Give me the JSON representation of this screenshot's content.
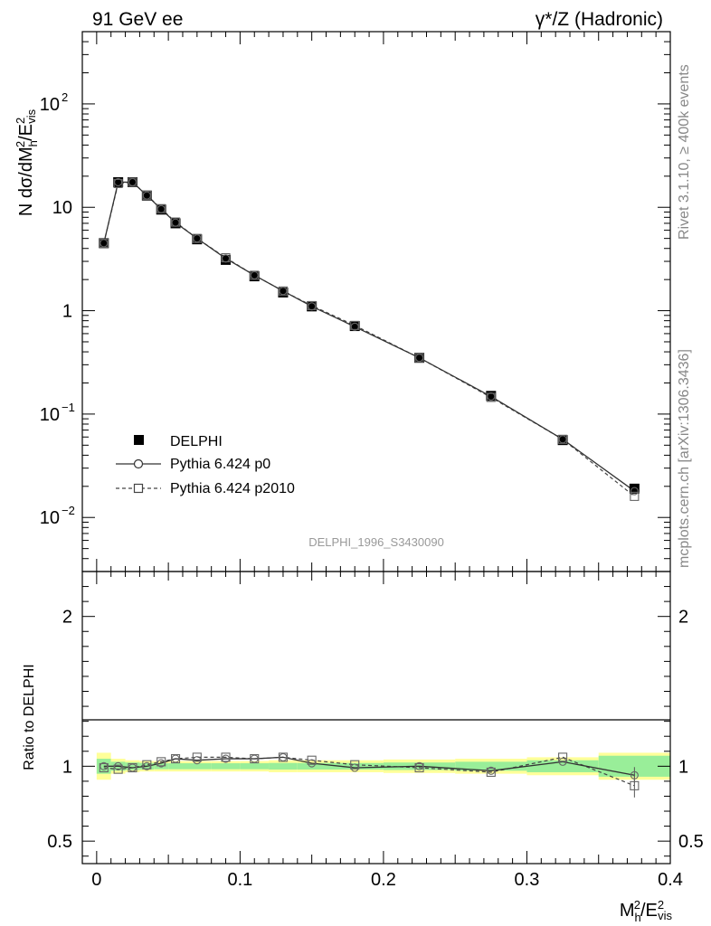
{
  "header": {
    "left_title": "91 GeV ee",
    "right_title": "γ*/Z (Hadronic)"
  },
  "side_labels": {
    "rivet": "Rivet 3.1.10, ≥ 400k events",
    "mcplots": "mcplots.cern.ch [arXiv:1306.3436]"
  },
  "analysis_id": "DELPHI_1996_S3430090",
  "chart_data": [
    {
      "type": "scatter",
      "panel": "main",
      "ylabel": "N dσ/dM_h^2/E_vis^2",
      "yscale": "log",
      "ylim": [
        0.003,
        500
      ],
      "xlim": [
        -0.01,
        0.4
      ],
      "y_tick_labels": [
        {
          "value": 100,
          "base": "10",
          "exp": "2"
        },
        {
          "value": 10,
          "base": "10",
          "exp": ""
        },
        {
          "value": 1,
          "base": "1",
          "exp": ""
        },
        {
          "value": 0.1,
          "base": "10",
          "exp": "−1"
        },
        {
          "value": 0.01,
          "base": "10",
          "exp": "−2"
        }
      ],
      "x": [
        0.005,
        0.015,
        0.025,
        0.035,
        0.045,
        0.055,
        0.07,
        0.09,
        0.11,
        0.13,
        0.15,
        0.18,
        0.225,
        0.275,
        0.325,
        0.375
      ],
      "series": [
        {
          "name": "DELPHI",
          "style": "data",
          "values": [
            4.5,
            17.5,
            17.5,
            13.0,
            9.5,
            7.0,
            4.9,
            3.1,
            2.15,
            1.5,
            1.1,
            0.71,
            0.35,
            0.15,
            0.056,
            0.019
          ]
        },
        {
          "name": "Pythia 6.424 p0",
          "style": "solid-circle",
          "values": [
            4.5,
            17.5,
            17.5,
            13.0,
            9.6,
            7.1,
            5.0,
            3.2,
            2.2,
            1.55,
            1.1,
            0.7,
            0.35,
            0.148,
            0.057,
            0.018
          ]
        },
        {
          "name": "Pythia 6.424 p2010",
          "style": "dashed-square",
          "values": [
            4.5,
            17.0,
            17.5,
            13.1,
            9.7,
            7.2,
            5.0,
            3.25,
            2.2,
            1.55,
            1.12,
            0.72,
            0.35,
            0.145,
            0.057,
            0.016
          ]
        }
      ],
      "legend": {
        "position": "lower-left",
        "entries": [
          "DELPHI",
          "Pythia 6.424 p0",
          "Pythia 6.424 p2010"
        ]
      }
    },
    {
      "type": "scatter",
      "panel": "ratio",
      "ylabel": "Ratio to DELPHI",
      "xlabel": "M_h^2/E_vis^2",
      "ylim": [
        0.35,
        2.3
      ],
      "xlim": [
        -0.01,
        0.4
      ],
      "y_tick_labels": [
        "2",
        "1",
        "0.5"
      ],
      "x_tick_labels": [
        "0",
        "0.1",
        "0.2",
        "0.3",
        "0.4"
      ],
      "x": [
        0.005,
        0.015,
        0.025,
        0.035,
        0.045,
        0.055,
        0.07,
        0.09,
        0.11,
        0.13,
        0.15,
        0.18,
        0.225,
        0.275,
        0.325,
        0.375
      ],
      "series": [
        {
          "name": "Pythia 6.424 p0",
          "values": [
            1.0,
            1.0,
            0.99,
            1.0,
            1.02,
            1.05,
            1.04,
            1.05,
            1.05,
            1.06,
            1.02,
            0.99,
            1.0,
            0.97,
            1.03,
            0.94
          ]
        },
        {
          "name": "Pythia 6.424 p2010",
          "values": [
            0.99,
            0.98,
            0.99,
            1.01,
            1.03,
            1.05,
            1.06,
            1.06,
            1.05,
            1.06,
            1.04,
            1.01,
            0.99,
            0.96,
            1.06,
            0.87
          ]
        }
      ],
      "bands": {
        "bin_edges": [
          0.0,
          0.01,
          0.02,
          0.03,
          0.04,
          0.05,
          0.06,
          0.08,
          0.1,
          0.12,
          0.14,
          0.16,
          0.2,
          0.25,
          0.3,
          0.35,
          0.4
        ],
        "green_halfwidth": [
          0.05,
          0.03,
          0.025,
          0.022,
          0.02,
          0.02,
          0.02,
          0.02,
          0.02,
          0.022,
          0.022,
          0.022,
          0.025,
          0.03,
          0.04,
          0.07
        ],
        "yellow_halfwidth": [
          0.09,
          0.05,
          0.04,
          0.035,
          0.035,
          0.035,
          0.035,
          0.035,
          0.035,
          0.04,
          0.04,
          0.04,
          0.045,
          0.05,
          0.06,
          0.09
        ]
      }
    }
  ]
}
